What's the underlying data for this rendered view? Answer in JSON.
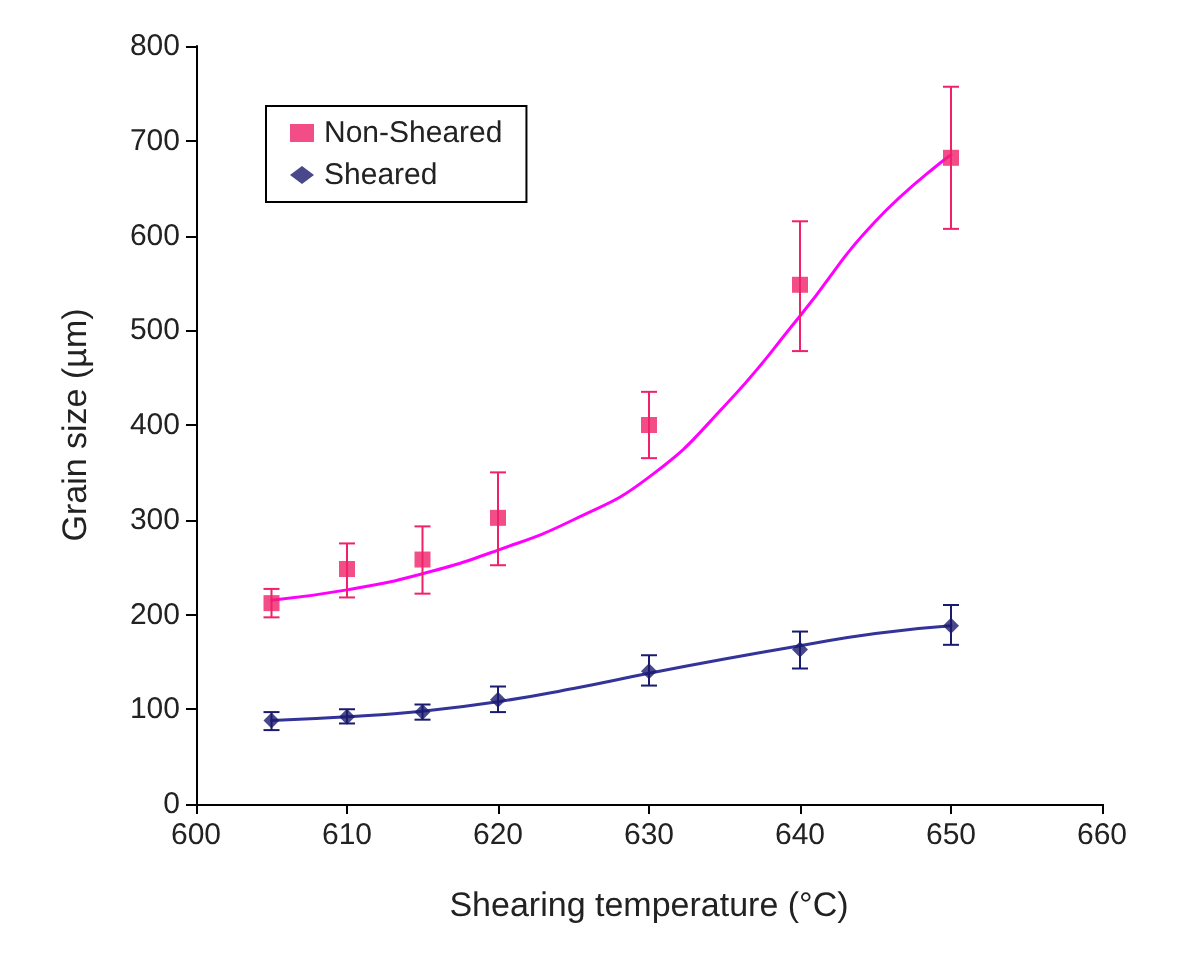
{
  "chart_data": {
    "type": "scatter",
    "xlabel": "Shearing temperature (°C)",
    "ylabel": "Grain size (µm)",
    "xlim": [
      600,
      660
    ],
    "ylim": [
      0,
      800
    ],
    "xticks": [
      600,
      610,
      620,
      630,
      640,
      650,
      660
    ],
    "yticks": [
      0,
      100,
      200,
      300,
      400,
      500,
      600,
      700,
      800
    ],
    "grid": false,
    "legend": "top left",
    "series": [
      {
        "name": "Non-Sheared",
        "marker": "square",
        "color": "#f0206a",
        "x": [
          605,
          610,
          615,
          620,
          630,
          640,
          650
        ],
        "values": [
          212,
          248,
          258,
          302,
          400,
          548,
          682
        ],
        "errors": [
          [
            197,
            227
          ],
          [
            218,
            275
          ],
          [
            222,
            293
          ],
          [
            252,
            350
          ],
          [
            365,
            435
          ],
          [
            478,
            615
          ],
          [
            607,
            757
          ]
        ]
      },
      {
        "name": "Sheared",
        "marker": "diamond",
        "color": "#1a1a6e",
        "x": [
          605,
          610,
          615,
          620,
          630,
          640,
          650
        ],
        "values": [
          88,
          92,
          97,
          110,
          140,
          163,
          188
        ],
        "errors": [
          [
            78,
            97
          ],
          [
            85,
            100
          ],
          [
            89,
            105
          ],
          [
            97,
            124
          ],
          [
            125,
            157
          ],
          [
            143,
            182
          ],
          [
            168,
            210
          ]
        ]
      },
      {
        "type": "line",
        "marker": "none",
        "line_style": "solid",
        "color": "#ff00ff",
        "x": [
          605,
          610,
          615,
          620,
          625,
          630,
          635,
          640,
          645,
          650
        ],
        "values": [
          215,
          226,
          243,
          268,
          300,
          345,
          420,
          515,
          615,
          685
        ]
      },
      {
        "type": "line",
        "marker": "none",
        "line_style": "solid",
        "color": "#333399",
        "x": [
          605,
          610,
          615,
          620,
          625,
          630,
          635,
          640,
          645,
          650
        ],
        "values": [
          88,
          92,
          98,
          108,
          122,
          138,
          153,
          167,
          180,
          188
        ]
      }
    ]
  }
}
